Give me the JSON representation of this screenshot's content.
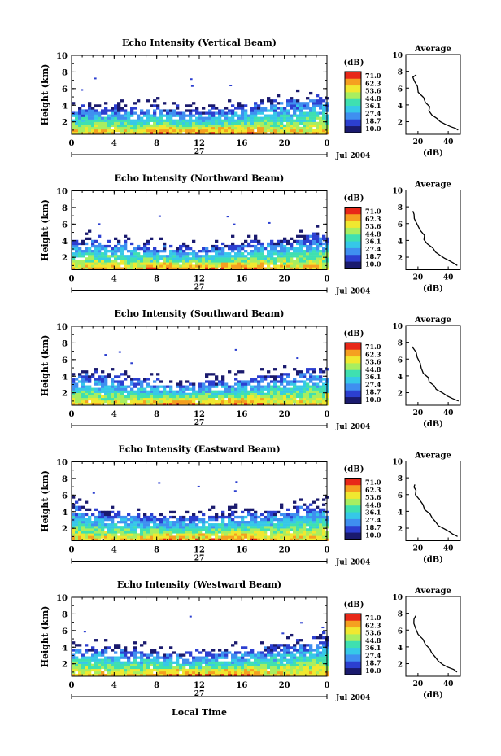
{
  "chart_data": {
    "type": "heatmap",
    "colorbar": {
      "unit": "(dB)",
      "ticks": [
        "71.0",
        "62.3",
        "53.6",
        "44.8",
        "36.1",
        "27.4",
        "18.7",
        "10.0"
      ],
      "range": [
        10.0,
        71.0
      ],
      "colors": [
        "#1a1a6e",
        "#2c3fd0",
        "#3f8ff0",
        "#36c8e8",
        "#3fe0b0",
        "#a8ee60",
        "#f0e830",
        "#f5a020",
        "#e82818"
      ]
    },
    "x_axis": {
      "label": "Local Time",
      "ticks": [
        "0",
        "4",
        "8",
        "12",
        "16",
        "20",
        "0"
      ],
      "date_label": "27",
      "month_label": "Jul 2004"
    },
    "y_axis": {
      "label": "Height (km)",
      "ticks": [
        "2",
        "4",
        "6",
        "8",
        "10"
      ],
      "range": [
        0.5,
        10
      ]
    },
    "average_panel": {
      "title": "Average",
      "xlabel": "(dB)",
      "xticks": [
        20,
        40
      ],
      "xlim": [
        12,
        48
      ]
    },
    "panels": [
      {
        "title": "Echo Intensity (Vertical Beam)",
        "avg_xticks": [
          "20",
          "40"
        ],
        "echo_top_km": [
          3.9,
          4.0,
          4.1,
          3.9,
          3.8,
          4.1,
          4.0,
          3.6,
          3.5,
          3.7,
          3.9,
          4.2,
          4.5,
          4.8,
          5.0,
          5.3,
          5.1
        ],
        "echo_top_hours": [
          0,
          1.5,
          3,
          4.5,
          6,
          7.5,
          9,
          10.5,
          12,
          13.5,
          15,
          16.5,
          18,
          19.5,
          21,
          22.5,
          24
        ],
        "average_profile": [
          [
            46,
            1.0
          ],
          [
            44,
            1.2
          ],
          [
            41,
            1.4
          ],
          [
            38,
            1.7
          ],
          [
            35,
            2.0
          ],
          [
            32,
            2.4
          ],
          [
            30,
            2.8
          ],
          [
            28,
            3.3
          ],
          [
            27,
            3.8
          ],
          [
            25,
            4.3
          ],
          [
            23,
            4.9
          ],
          [
            21,
            5.5
          ],
          [
            19,
            6.2
          ],
          [
            18,
            6.8
          ],
          [
            17,
            7.3
          ],
          [
            18,
            7.6
          ]
        ]
      },
      {
        "title": "Echo Intensity (Northward Beam)",
        "avg_xticks": [
          "20",
          "40"
        ],
        "echo_top_km": [
          4.2,
          4.4,
          4.1,
          4.0,
          3.9,
          3.6,
          3.5,
          3.4,
          3.5,
          3.6,
          3.9,
          4.0,
          4.3,
          4.2,
          4.6,
          5.1,
          4.9
        ],
        "echo_top_hours": [
          0,
          1.5,
          3,
          4.5,
          6,
          7.5,
          9,
          10.5,
          12,
          13.5,
          15,
          16.5,
          18,
          19.5,
          21,
          22.5,
          24
        ],
        "average_profile": [
          [
            46,
            1.0
          ],
          [
            43,
            1.3
          ],
          [
            40,
            1.6
          ],
          [
            37,
            1.9
          ],
          [
            34,
            2.2
          ],
          [
            31,
            2.6
          ],
          [
            29,
            3.1
          ],
          [
            27,
            3.6
          ],
          [
            25,
            4.1
          ],
          [
            24,
            4.6
          ],
          [
            22,
            5.2
          ],
          [
            20,
            5.9
          ],
          [
            18,
            6.6
          ],
          [
            17,
            7.1
          ],
          [
            17,
            7.5
          ]
        ]
      },
      {
        "title": "Echo Intensity (Southward Beam)",
        "avg_xticks": [
          "20",
          "40"
        ],
        "echo_top_km": [
          4.4,
          4.6,
          4.3,
          4.0,
          3.8,
          3.6,
          3.4,
          3.3,
          3.4,
          3.6,
          3.8,
          4.0,
          4.1,
          4.3,
          4.6,
          5.0,
          5.2
        ],
        "echo_top_hours": [
          0,
          1.5,
          3,
          4.5,
          6,
          7.5,
          9,
          10.5,
          12,
          13.5,
          15,
          16.5,
          18,
          19.5,
          21,
          22.5,
          24
        ],
        "average_profile": [
          [
            46,
            1.0
          ],
          [
            43,
            1.3
          ],
          [
            39,
            1.6
          ],
          [
            36,
            2.0
          ],
          [
            33,
            2.4
          ],
          [
            30,
            2.8
          ],
          [
            28,
            3.3
          ],
          [
            26,
            3.8
          ],
          [
            24,
            4.3
          ],
          [
            23,
            4.9
          ],
          [
            21,
            5.5
          ],
          [
            19,
            6.2
          ],
          [
            18,
            6.8
          ],
          [
            17,
            7.2
          ],
          [
            17,
            7.5
          ]
        ]
      },
      {
        "title": "Echo Intensity (Eastward Beam)",
        "avg_xticks": [
          "20",
          "40"
        ],
        "echo_top_km": [
          5.4,
          4.3,
          4.0,
          4.0,
          3.9,
          3.8,
          3.6,
          3.6,
          3.7,
          3.9,
          4.1,
          4.3,
          4.1,
          4.2,
          4.7,
          5.2,
          5.0
        ],
        "echo_top_hours": [
          0,
          1.5,
          3,
          4.5,
          6,
          7.5,
          9,
          10.5,
          12,
          13.5,
          15,
          16.5,
          18,
          19.5,
          21,
          22.5,
          24
        ],
        "average_profile": [
          [
            46,
            1.0
          ],
          [
            43,
            1.3
          ],
          [
            40,
            1.6
          ],
          [
            37,
            1.9
          ],
          [
            34,
            2.3
          ],
          [
            31,
            2.7
          ],
          [
            29,
            3.2
          ],
          [
            27,
            3.7
          ],
          [
            25,
            4.2
          ],
          [
            23,
            4.8
          ],
          [
            21,
            5.4
          ],
          [
            19,
            6.0
          ],
          [
            18,
            6.5
          ],
          [
            17,
            6.9
          ],
          [
            18,
            7.2
          ]
        ]
      },
      {
        "title": "Echo Intensity (Westward Beam)",
        "avg_xticks": [
          "20",
          "40"
        ],
        "echo_top_km": [
          4.6,
          4.3,
          4.1,
          4.0,
          3.9,
          3.7,
          3.5,
          3.4,
          3.5,
          3.7,
          3.9,
          4.0,
          4.2,
          4.4,
          4.8,
          5.3,
          5.4
        ],
        "echo_top_hours": [
          0,
          1.5,
          3,
          4.5,
          6,
          7.5,
          9,
          10.5,
          12,
          13.5,
          15,
          16.5,
          18,
          19.5,
          21,
          22.5,
          24
        ],
        "average_profile": [
          [
            46,
            1.0
          ],
          [
            43,
            1.3
          ],
          [
            40,
            1.6
          ],
          [
            37,
            1.9
          ],
          [
            34,
            2.3
          ],
          [
            31,
            2.8
          ],
          [
            29,
            3.3
          ],
          [
            27,
            3.8
          ],
          [
            25,
            4.3
          ],
          [
            23,
            4.9
          ],
          [
            21,
            5.5
          ],
          [
            19,
            6.2
          ],
          [
            18,
            6.8
          ],
          [
            17,
            7.3
          ],
          [
            18,
            7.7
          ]
        ]
      }
    ]
  }
}
